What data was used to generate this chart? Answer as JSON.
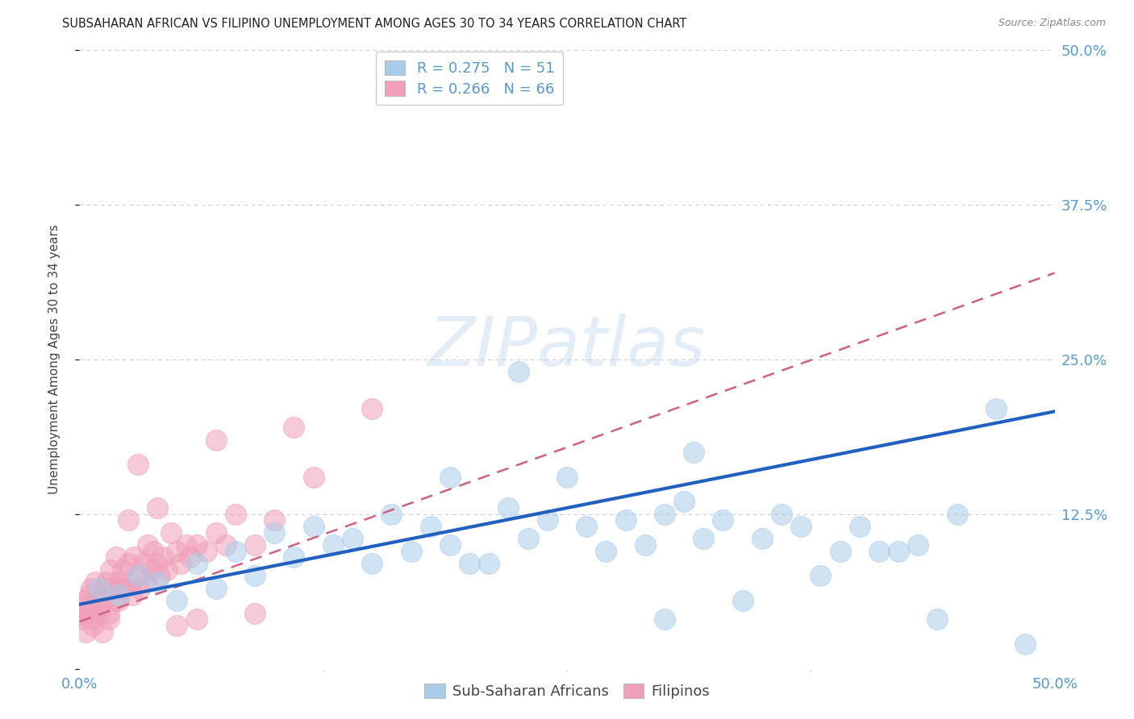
{
  "title": "SUBSAHARAN AFRICAN VS FILIPINO UNEMPLOYMENT AMONG AGES 30 TO 34 YEARS CORRELATION CHART",
  "source": "Source: ZipAtlas.com",
  "ylabel": "Unemployment Among Ages 30 to 34 years",
  "xlim": [
    0.0,
    0.5
  ],
  "ylim": [
    0.0,
    0.5
  ],
  "legend_label_blue": "Sub-Saharan Africans",
  "legend_label_pink": "Filipinos",
  "blue_color": "#A8CCEA",
  "pink_color": "#F0A0B8",
  "blue_line_color": "#2060C0",
  "pink_line_color": "#D06080",
  "grid_color": "#CCCCCC",
  "background_color": "#FFFFFF",
  "tick_color": "#5599CC",
  "blue_x": [
    0.01,
    0.02,
    0.03,
    0.04,
    0.05,
    0.06,
    0.07,
    0.08,
    0.09,
    0.1,
    0.11,
    0.12,
    0.13,
    0.14,
    0.15,
    0.16,
    0.17,
    0.18,
    0.19,
    0.2,
    0.21,
    0.22,
    0.225,
    0.23,
    0.24,
    0.25,
    0.26,
    0.27,
    0.28,
    0.29,
    0.3,
    0.31,
    0.315,
    0.32,
    0.33,
    0.34,
    0.35,
    0.36,
    0.37,
    0.38,
    0.39,
    0.4,
    0.41,
    0.42,
    0.43,
    0.44,
    0.45,
    0.47,
    0.485,
    0.19,
    0.3
  ],
  "blue_y": [
    0.065,
    0.06,
    0.075,
    0.07,
    0.055,
    0.085,
    0.065,
    0.095,
    0.075,
    0.11,
    0.09,
    0.115,
    0.1,
    0.105,
    0.085,
    0.125,
    0.095,
    0.115,
    0.1,
    0.085,
    0.085,
    0.13,
    0.24,
    0.105,
    0.12,
    0.155,
    0.115,
    0.095,
    0.12,
    0.1,
    0.04,
    0.135,
    0.175,
    0.105,
    0.12,
    0.055,
    0.105,
    0.125,
    0.115,
    0.075,
    0.095,
    0.115,
    0.095,
    0.095,
    0.1,
    0.04,
    0.125,
    0.21,
    0.02,
    0.155,
    0.125
  ],
  "pink_x": [
    0.001,
    0.002,
    0.003,
    0.005,
    0.006,
    0.007,
    0.008,
    0.009,
    0.01,
    0.012,
    0.013,
    0.014,
    0.015,
    0.016,
    0.017,
    0.018,
    0.019,
    0.02,
    0.021,
    0.022,
    0.023,
    0.025,
    0.026,
    0.027,
    0.028,
    0.03,
    0.031,
    0.033,
    0.034,
    0.035,
    0.037,
    0.038,
    0.04,
    0.041,
    0.043,
    0.045,
    0.047,
    0.05,
    0.052,
    0.055,
    0.057,
    0.06,
    0.065,
    0.07,
    0.075,
    0.08,
    0.09,
    0.1,
    0.001,
    0.003,
    0.005,
    0.007,
    0.01,
    0.012,
    0.015,
    0.02,
    0.025,
    0.03,
    0.04,
    0.05,
    0.06,
    0.07,
    0.09,
    0.11,
    0.12,
    0.15
  ],
  "pink_y": [
    0.045,
    0.04,
    0.055,
    0.045,
    0.065,
    0.035,
    0.07,
    0.055,
    0.045,
    0.055,
    0.065,
    0.07,
    0.045,
    0.08,
    0.065,
    0.055,
    0.09,
    0.07,
    0.065,
    0.08,
    0.065,
    0.085,
    0.07,
    0.06,
    0.09,
    0.075,
    0.065,
    0.085,
    0.07,
    0.1,
    0.08,
    0.095,
    0.085,
    0.075,
    0.09,
    0.08,
    0.11,
    0.095,
    0.085,
    0.1,
    0.09,
    0.1,
    0.095,
    0.11,
    0.1,
    0.125,
    0.1,
    0.12,
    0.05,
    0.03,
    0.06,
    0.04,
    0.05,
    0.03,
    0.04,
    0.055,
    0.12,
    0.165,
    0.13,
    0.035,
    0.04,
    0.185,
    0.045,
    0.195,
    0.155,
    0.21
  ],
  "blue_line_x0": 0.0,
  "blue_line_y0": 0.052,
  "blue_line_x1": 0.5,
  "blue_line_y1": 0.208,
  "pink_line_x0": 0.0,
  "pink_line_y0": 0.038,
  "pink_line_x1": 0.5,
  "pink_line_y1": 0.32
}
